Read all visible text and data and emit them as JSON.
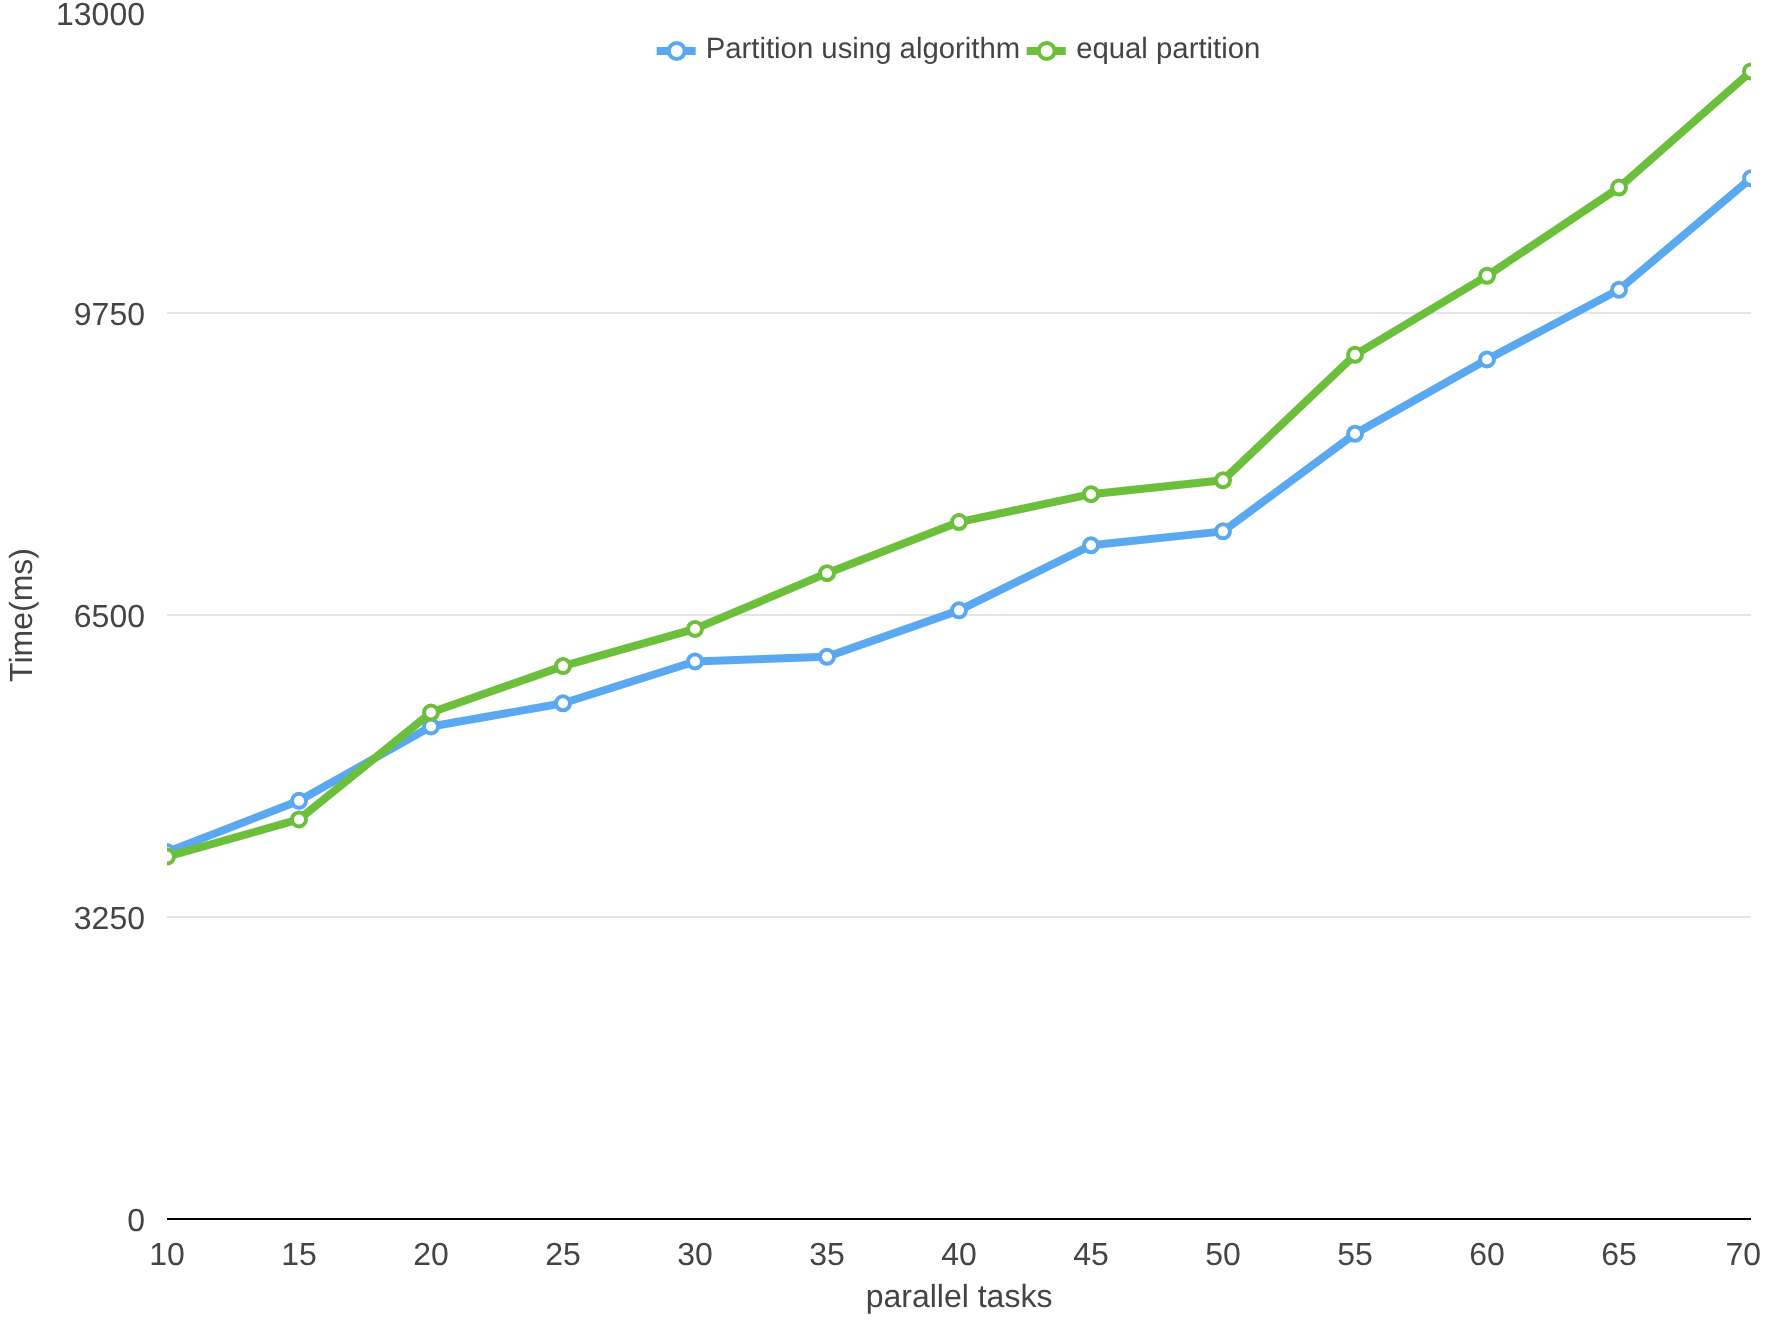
{
  "chart_data": {
    "type": "line",
    "xlabel": "parallel tasks",
    "ylabel": "Time(ms)",
    "x": [
      10,
      15,
      20,
      25,
      30,
      35,
      40,
      45,
      50,
      55,
      60,
      65,
      70
    ],
    "series": [
      {
        "name": "Partition using algorithm",
        "color": "#5aa9f0",
        "values": [
          3950,
          4500,
          5300,
          5550,
          6000,
          6050,
          6550,
          7250,
          7400,
          8450,
          9250,
          10000,
          11200
        ]
      },
      {
        "name": "equal partition",
        "color": "#6bbf3a",
        "values": [
          3900,
          4300,
          5450,
          5950,
          6350,
          6950,
          7500,
          7800,
          7950,
          9300,
          10150,
          11100,
          12350
        ]
      }
    ],
    "xlim": [
      10,
      70
    ],
    "xticks": [
      10,
      15,
      20,
      25,
      30,
      35,
      40,
      45,
      50,
      55,
      60,
      65,
      70
    ],
    "ylim": [
      0,
      13000
    ],
    "yticks": [
      0,
      3250,
      6500,
      9750,
      13000
    ],
    "grid": "y",
    "legend": "top",
    "marker": "circle",
    "line_style": "solid"
  }
}
